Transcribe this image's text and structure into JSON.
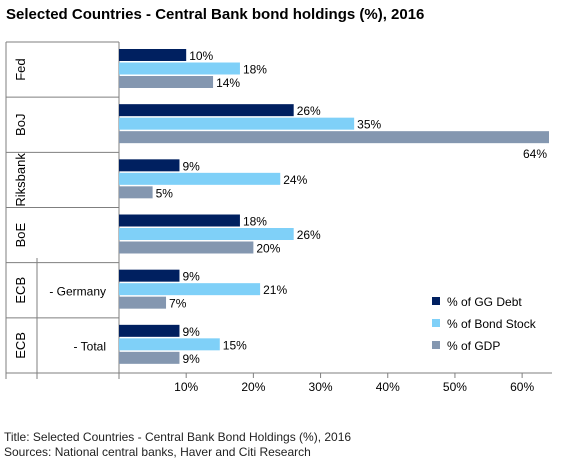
{
  "header": {
    "title": "Selected Countries - Central Bank bond holdings (%), 2016"
  },
  "footer": {
    "title_line": "Title: Selected Countries - Central Bank Bond Holdings (%), 2016",
    "sources_line": "Sources: National central banks, Haver and Citi Research"
  },
  "chart_data": {
    "type": "bar",
    "orientation": "horizontal",
    "title": "Selected Countries - Central Bank bond holdings (%), 2016",
    "xlim": [
      0,
      64
    ],
    "x_ticks": [
      "10%",
      "20%",
      "30%",
      "40%",
      "50%",
      "60%"
    ],
    "x_tick_values": [
      10,
      20,
      30,
      40,
      50,
      60
    ],
    "grid": false,
    "legend_position": "bottom-right",
    "groups": [
      {
        "outer": "Fed",
        "inner": ""
      },
      {
        "outer": "BoJ",
        "inner": ""
      },
      {
        "outer": "Riksbank",
        "inner": ""
      },
      {
        "outer": "BoE",
        "inner": ""
      },
      {
        "outer": "ECB",
        "inner": "- Germany"
      },
      {
        "outer": "ECB",
        "inner": "- Total"
      }
    ],
    "series": [
      {
        "name": "% of GG Debt",
        "color": "#002060",
        "values": [
          10,
          26,
          9,
          18,
          9,
          9
        ],
        "labels": [
          "10%",
          "26%",
          "9%",
          "18%",
          "9%",
          "9%"
        ]
      },
      {
        "name": "% of Bond Stock",
        "color": "#7FD0F8",
        "values": [
          18,
          35,
          24,
          26,
          21,
          15
        ],
        "labels": [
          "18%",
          "35%",
          "24%",
          "26%",
          "21%",
          "15%"
        ]
      },
      {
        "name": "% of GDP",
        "color": "#8497B0",
        "values": [
          14,
          64,
          5,
          20,
          7,
          9
        ],
        "labels": [
          "14%",
          "64%",
          "5%",
          "20%",
          "7%",
          "9%"
        ]
      }
    ]
  }
}
